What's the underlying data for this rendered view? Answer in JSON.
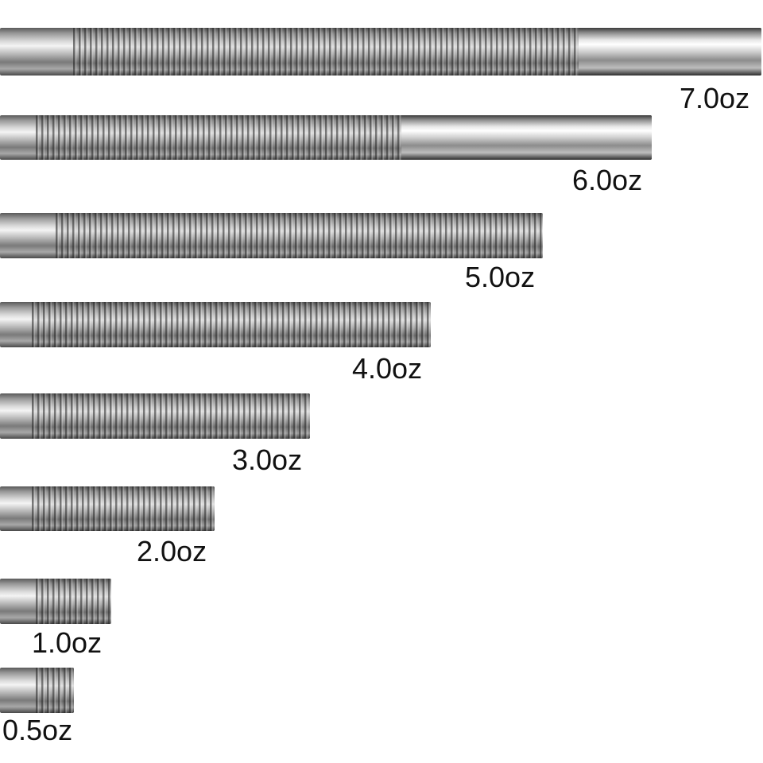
{
  "weights": [
    {
      "label": "7.0oz"
    },
    {
      "label": "6.0oz"
    },
    {
      "label": "5.0oz"
    },
    {
      "label": "4.0oz"
    },
    {
      "label": "3.0oz"
    },
    {
      "label": "2.0oz"
    },
    {
      "label": "1.0oz"
    },
    {
      "label": "0.5oz"
    }
  ]
}
